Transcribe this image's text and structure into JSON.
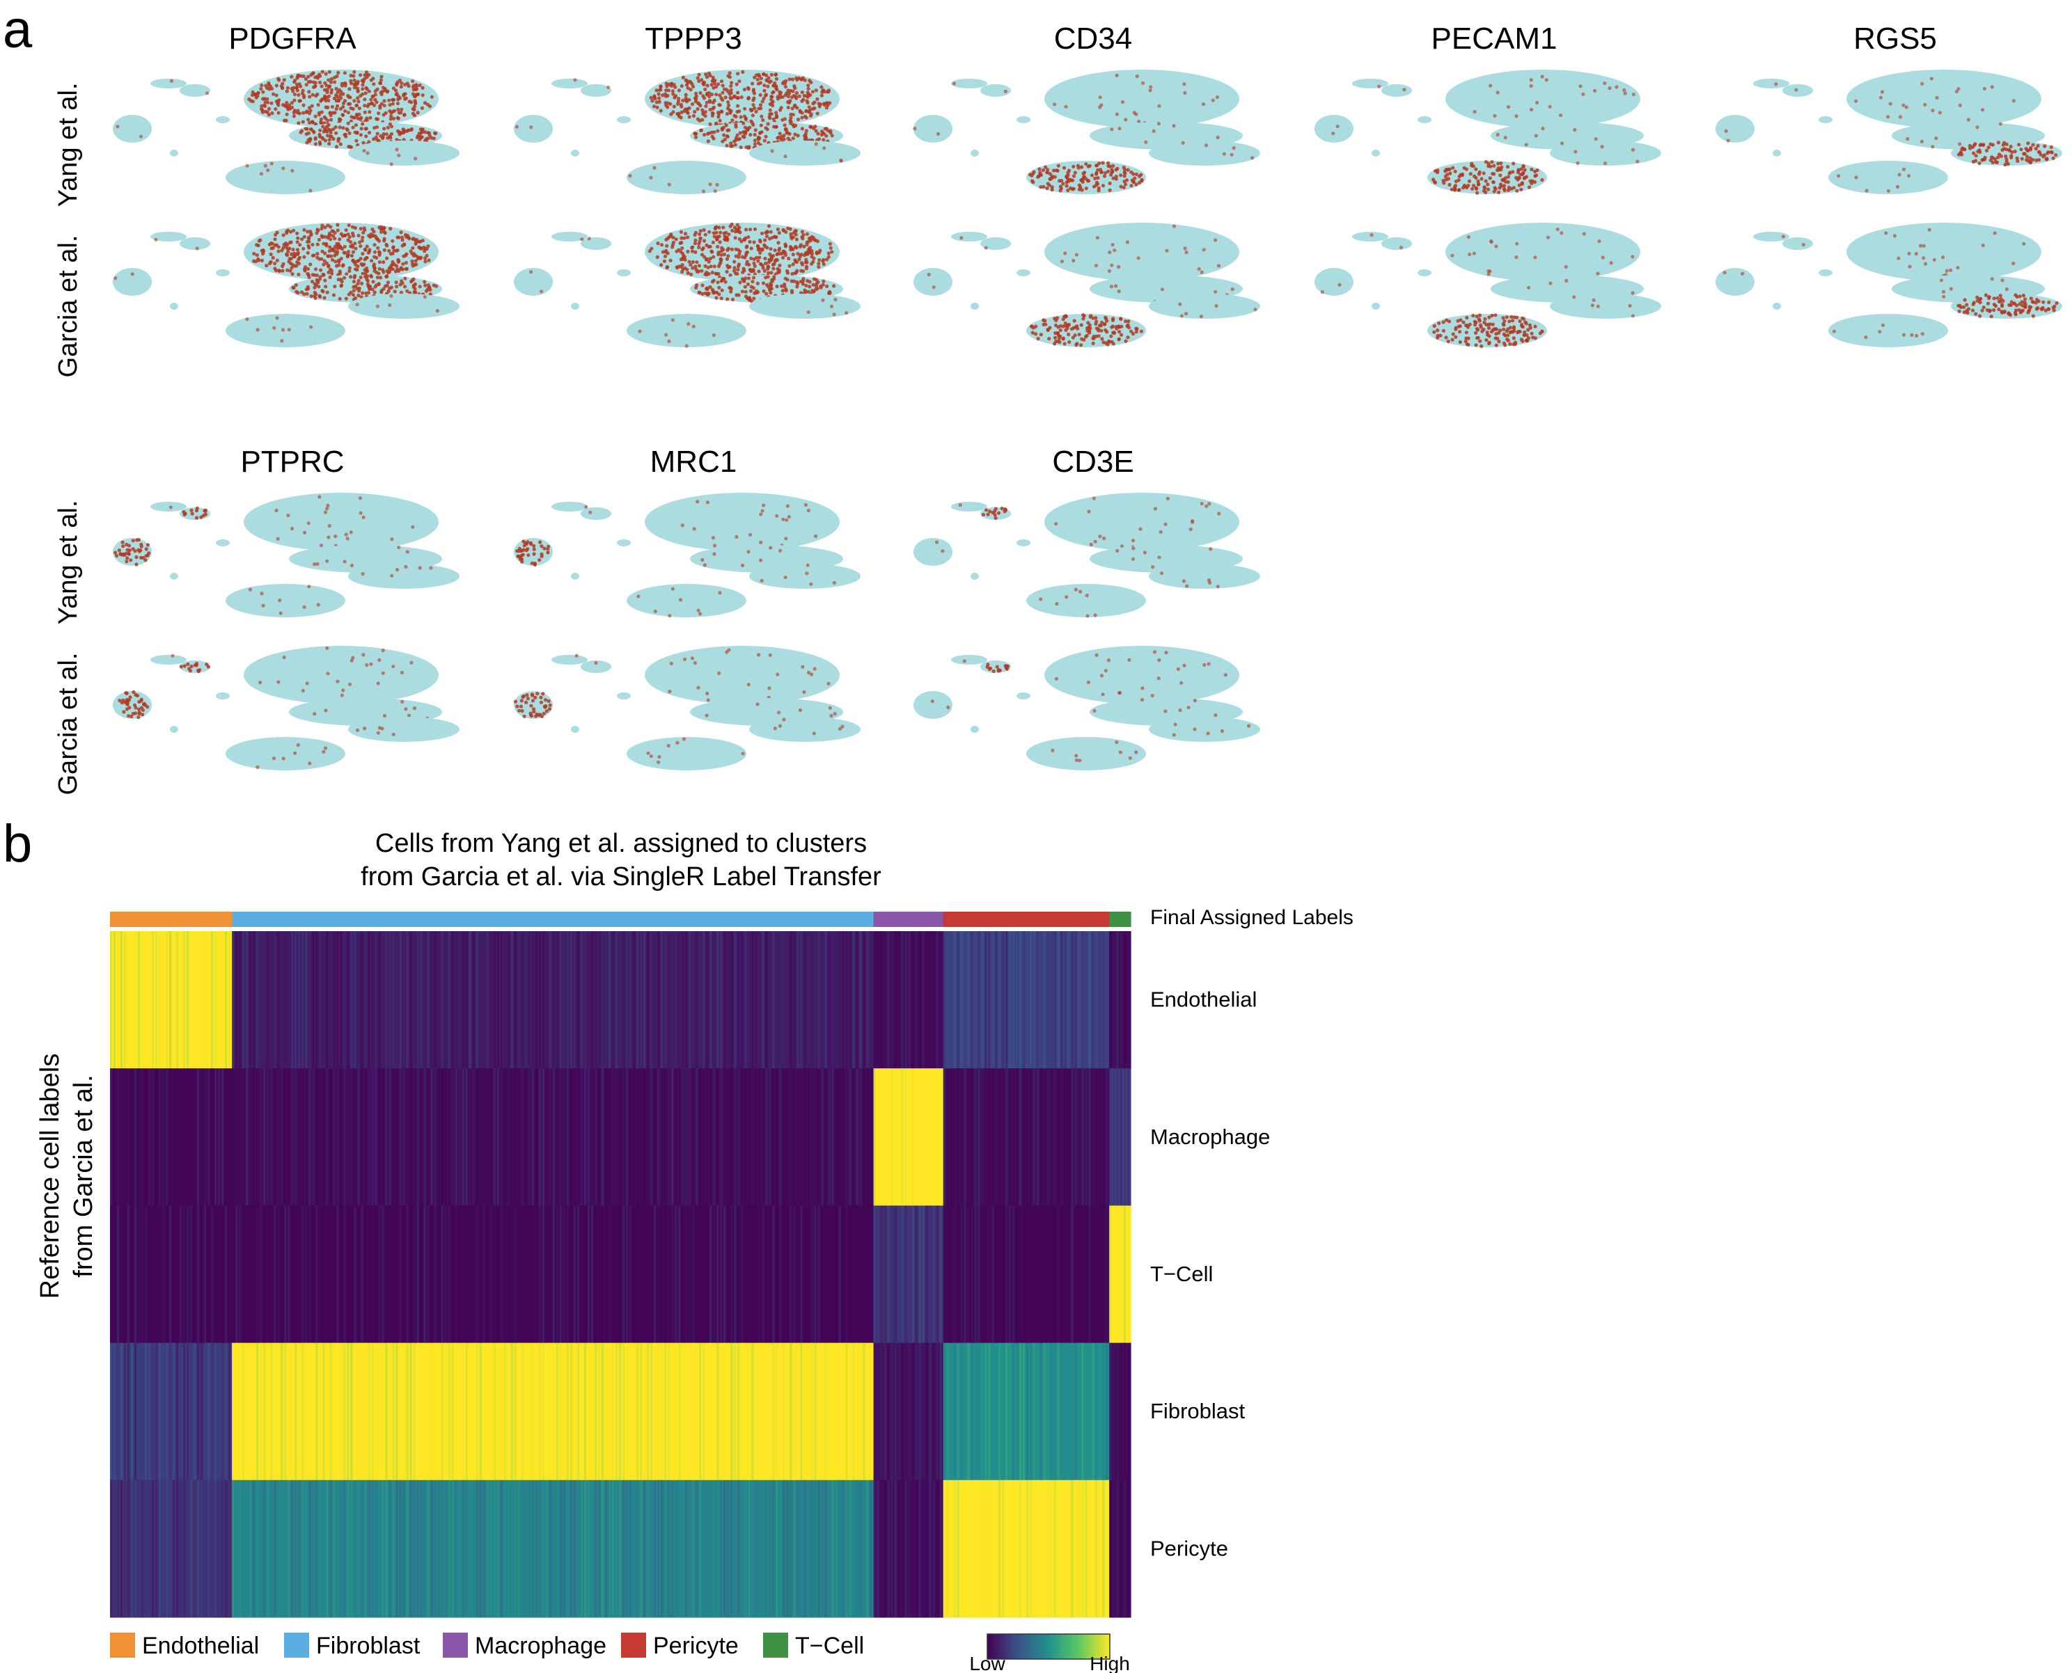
{
  "panel_labels": {
    "a": "a",
    "b": "b"
  },
  "colors": {
    "umap_base": "#aadce0",
    "umap_high": "#b33a22",
    "Endothelial": "#f09136",
    "Fibroblast": "#5aaee0",
    "Macrophage": "#8a56a7",
    "Pericyte": "#c63a33",
    "T-Cell": "#3f8f45",
    "viridis": [
      "#440154",
      "#3b528b",
      "#21918c",
      "#5ec962",
      "#fde725"
    ]
  },
  "panel_a": {
    "dataset_labels": {
      "top": "Yang et al.",
      "bottom": "Garcia et al."
    },
    "genes_row1": [
      "PDGFRA",
      "TPPP3",
      "CD34",
      "PECAM1",
      "RGS5"
    ],
    "genes_row2": [
      "PTPRC",
      "MRC1",
      "CD3E"
    ],
    "expression_highlight": {
      "PDGFRA": "fibroblast",
      "TPPP3": "fibroblast",
      "CD34": "endothelial",
      "PECAM1": "endothelial",
      "RGS5": "pericyte",
      "PTPRC": "immune",
      "MRC1": "macrophage",
      "CD3E": "tcell"
    }
  },
  "panel_b": {
    "title_line1": "Cells from Yang et al. assigned to clusters",
    "title_line2": "from Garcia et al. via SingleR Label Transfer",
    "annotation_label": "Final Assigned Labels",
    "ylabel_line1": "Reference cell labels",
    "ylabel_line2": "from Garcia et al.",
    "legend": [
      "Endothelial",
      "Fibroblast",
      "Macrophage",
      "Pericyte",
      "T-Cell"
    ],
    "legend_texts": [
      "Endothelial",
      "Fibroblast",
      "Macrophage",
      "Pericyte",
      "T−Cell"
    ],
    "colorbar": {
      "low": "Low",
      "high": "High"
    }
  },
  "chart_data": [
    {
      "type": "scatter",
      "description_of_marks": "UMAP feature plots; 8 genes x 2 datasets, cells coloured by expression (low to high)",
      "genes": [
        "PDGFRA",
        "TPPP3",
        "CD34",
        "PECAM1",
        "RGS5",
        "PTPRC",
        "MRC1",
        "CD3E"
      ],
      "datasets": [
        "Yang et al.",
        "Garcia et al."
      ]
    },
    {
      "type": "heatmap",
      "title": "Cells from Yang et al. assigned to clusters from Garcia et al. via SingleR Label Transfer",
      "ylabel": "Reference cell labels from Garcia et al.",
      "rows": [
        "Endothelial",
        "Macrophage",
        "T−Cell",
        "Fibroblast",
        "Pericyte"
      ],
      "column_groups": [
        "Endothelial",
        "Fibroblast",
        "Macrophage",
        "Pericyte",
        "T-Cell"
      ],
      "column_group_fraction": [
        0.119,
        0.626,
        0.068,
        0.162,
        0.021
      ],
      "values": [
        [
          1.0,
          0.08,
          0.03,
          0.2,
          0.03
        ],
        [
          0.02,
          0.03,
          1.0,
          0.03,
          0.2
        ],
        [
          0.02,
          0.02,
          0.15,
          0.02,
          1.0
        ],
        [
          0.18,
          1.0,
          0.05,
          0.5,
          0.03
        ],
        [
          0.15,
          0.45,
          0.03,
          1.0,
          0.03
        ]
      ],
      "colorscale": [
        "Low",
        "High"
      ]
    }
  ]
}
